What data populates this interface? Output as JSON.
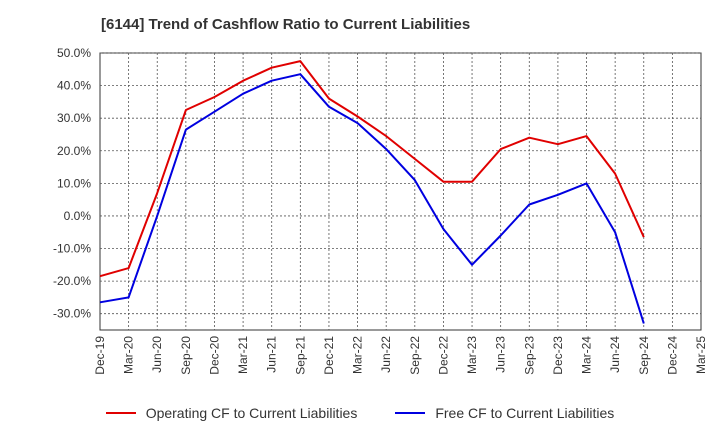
{
  "chart_data": {
    "type": "line",
    "title": "[6144]  Trend of Cashflow Ratio to Current Liabilities",
    "x": [
      "Dec-19",
      "Mar-20",
      "Jun-20",
      "Sep-20",
      "Dec-20",
      "Mar-21",
      "Jun-21",
      "Sep-21",
      "Dec-21",
      "Mar-22",
      "Jun-22",
      "Sep-22",
      "Dec-22",
      "Mar-23",
      "Jun-23",
      "Sep-23",
      "Dec-23",
      "Mar-24",
      "Jun-24",
      "Sep-24",
      "Dec-24",
      "Mar-25"
    ],
    "yticks": [
      "50.0%",
      "40.0%",
      "30.0%",
      "20.0%",
      "10.0%",
      "0.0%",
      "-10.0%",
      "-20.0%",
      "-30.0%"
    ],
    "ylim": [
      -35,
      50
    ],
    "grid": true,
    "legend_position": "bottom",
    "series": [
      {
        "name": "Operating CF to Current Liabilities",
        "color": "#e00000",
        "points": [
          [
            "Dec-19",
            -18.5
          ],
          [
            "Mar-20",
            -16
          ],
          [
            "Jun-20",
            7
          ],
          [
            "Sep-20",
            32.5
          ],
          [
            "Dec-20",
            36.5
          ],
          [
            "Mar-21",
            41.5
          ],
          [
            "Jun-21",
            45.5
          ],
          [
            "Sep-21",
            47.5
          ],
          [
            "Dec-21",
            36
          ],
          [
            "Mar-22",
            30.5
          ],
          [
            "Jun-22",
            24.5
          ],
          [
            "Sep-22",
            17.5
          ],
          [
            "Dec-22",
            10.5
          ],
          [
            "Mar-23",
            10.5
          ],
          [
            "Jun-23",
            20.5
          ],
          [
            "Sep-23",
            24
          ],
          [
            "Dec-23",
            22
          ],
          [
            "Mar-24",
            24.5
          ],
          [
            "Jun-24",
            13
          ],
          [
            "Sep-24",
            -6.5
          ]
        ]
      },
      {
        "name": "Free CF to Current Liabilities",
        "color": "#0000e0",
        "points": [
          [
            "Dec-19",
            -26.5
          ],
          [
            "Mar-20",
            -25
          ],
          [
            "Jun-20",
            0
          ],
          [
            "Sep-20",
            26.5
          ],
          [
            "Dec-20",
            32
          ],
          [
            "Mar-21",
            37.5
          ],
          [
            "Jun-21",
            41.5
          ],
          [
            "Sep-21",
            43.5
          ],
          [
            "Dec-21",
            33.5
          ],
          [
            "Mar-22",
            28.5
          ],
          [
            "Jun-22",
            20.5
          ],
          [
            "Sep-22",
            11
          ],
          [
            "Dec-22",
            -4
          ],
          [
            "Mar-23",
            -15
          ],
          [
            "Jun-23",
            -6
          ],
          [
            "Sep-23",
            3.5
          ],
          [
            "Dec-23",
            6.5
          ],
          [
            "Mar-24",
            10
          ],
          [
            "Jun-24",
            -5
          ],
          [
            "Sep-24",
            -33
          ]
        ]
      }
    ]
  }
}
